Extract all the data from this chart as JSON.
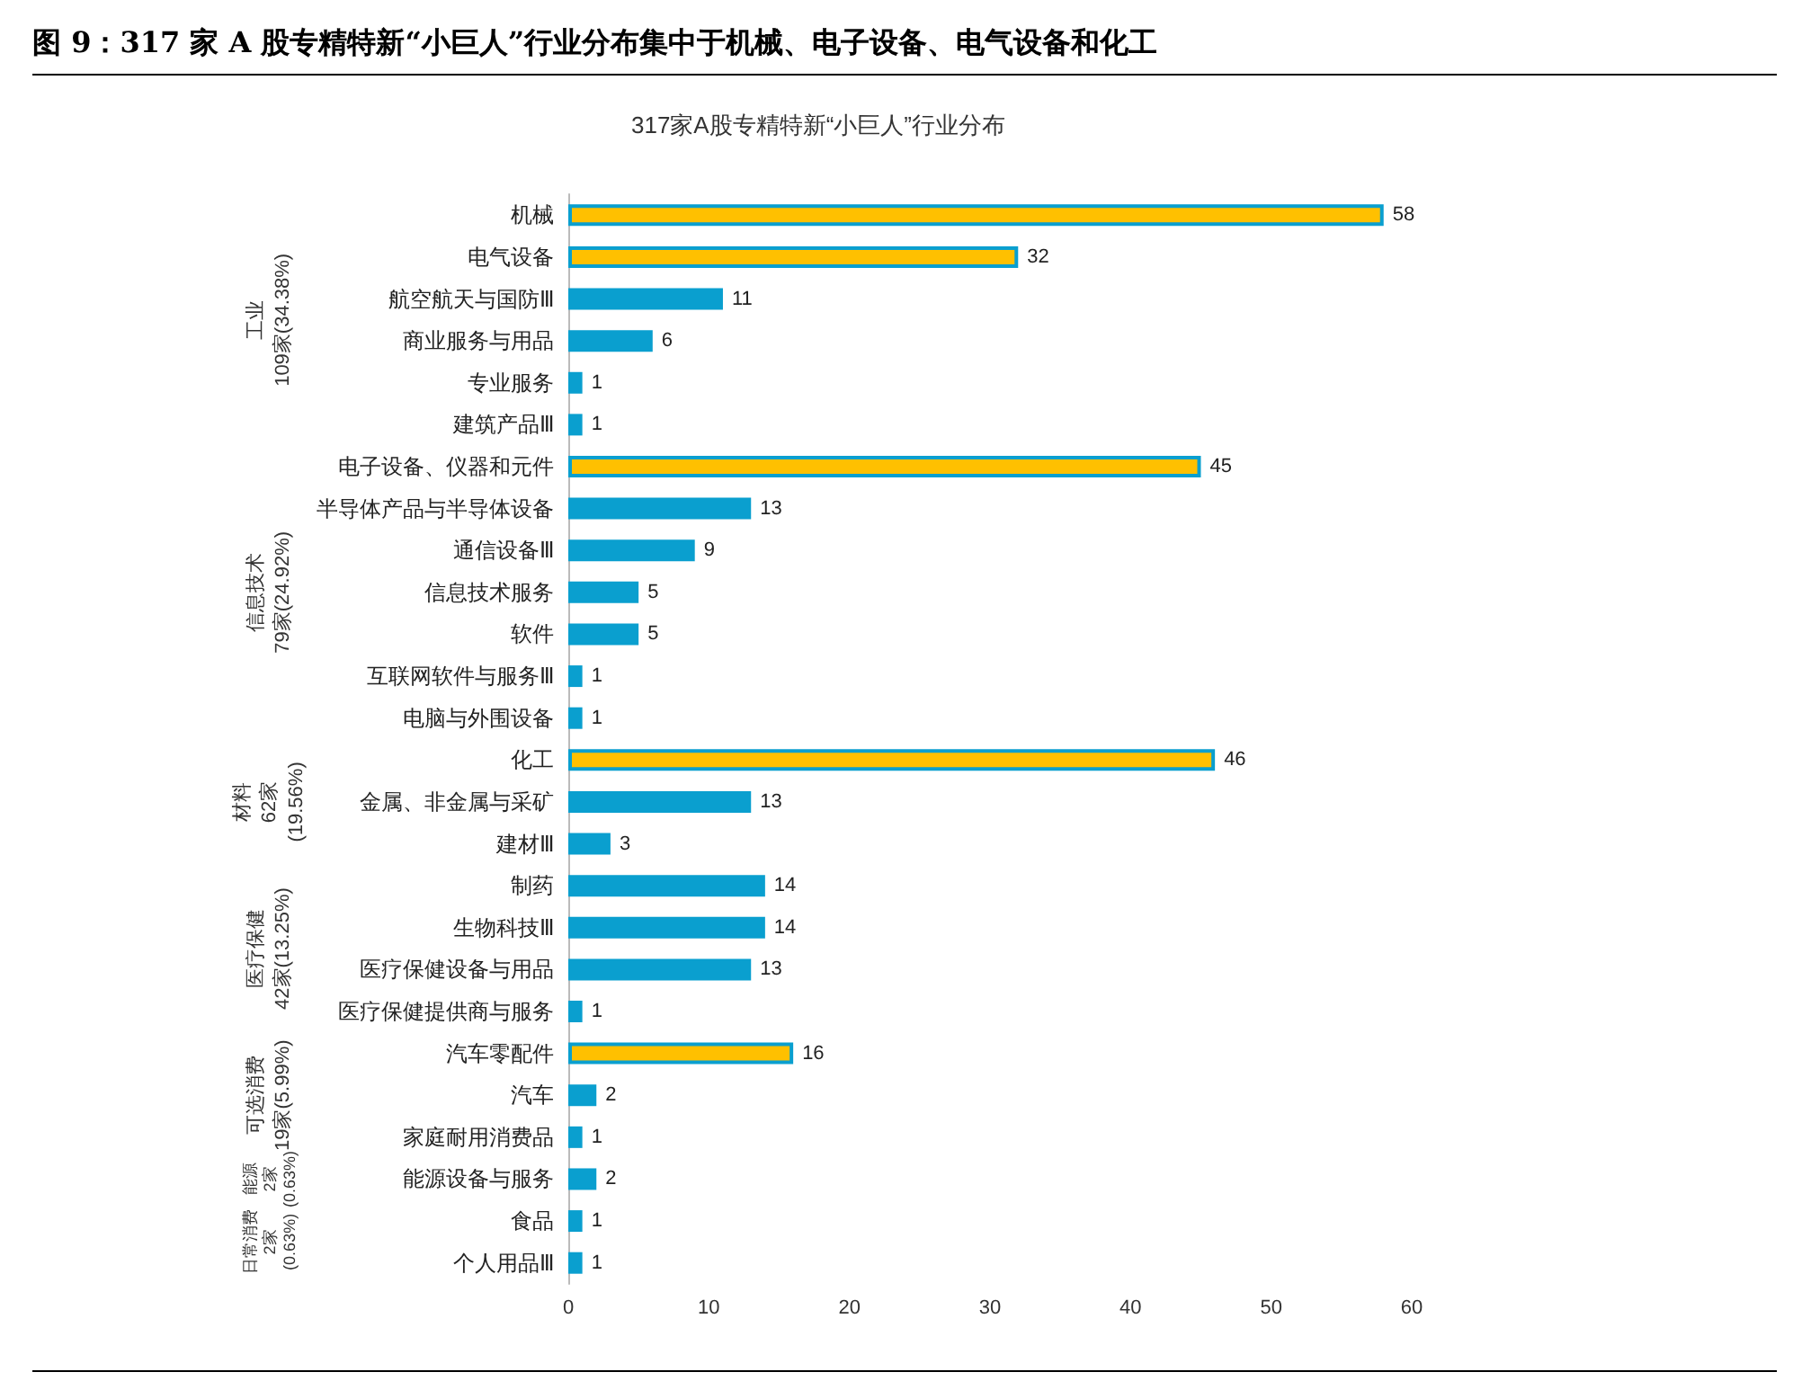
{
  "chart_data": {
    "type": "bar",
    "orientation": "horizontal",
    "title": "图 9：317 家 A 股专精特新“小巨人”行业分布集中于机械、电子设备、电气设备和化工",
    "subtitle": "317家A股专精特新“小巨人”行业分布",
    "categories": [
      "机械",
      "电气设备",
      "航空航天与国防Ⅲ",
      "商业服务与用品",
      "专业服务",
      "建筑产品Ⅲ",
      "电子设备、仪器和元件",
      "半导体产品与半导体设备",
      "通信设备Ⅲ",
      "信息技术服务",
      "软件",
      "互联网软件与服务Ⅲ",
      "电脑与外围设备",
      "化工",
      "金属、非金属与采矿",
      "建材Ⅲ",
      "制药",
      "生物科技Ⅲ",
      "医疗保健设备与用品",
      "医疗保健提供商与服务",
      "汽车零配件",
      "汽车",
      "家庭耐用消费品",
      "能源设备与服务",
      "食品",
      "个人用品Ⅲ"
    ],
    "values": [
      58,
      32,
      11,
      6,
      1,
      1,
      45,
      13,
      9,
      5,
      5,
      1,
      1,
      46,
      13,
      3,
      14,
      14,
      13,
      1,
      16,
      2,
      1,
      2,
      1,
      1
    ],
    "color": "#0a9fcf",
    "colors": [
      "#ffc000",
      "#ffc000",
      "#0a9fcf",
      "#0a9fcf",
      "#0a9fcf",
      "#0a9fcf",
      "#ffc000",
      "#0a9fcf",
      "#0a9fcf",
      "#0a9fcf",
      "#0a9fcf",
      "#0a9fcf",
      "#0a9fcf",
      "#ffc000",
      "#0a9fcf",
      "#0a9fcf",
      "#0a9fcf",
      "#0a9fcf",
      "#0a9fcf",
      "#0a9fcf",
      "#ffc000",
      "#0a9fcf",
      "#0a9fcf",
      "#0a9fcf",
      "#0a9fcf",
      "#0a9fcf"
    ],
    "data_labels": true,
    "xlim": [
      0,
      60
    ],
    "xticks": [
      0,
      10,
      20,
      30,
      40,
      50,
      60
    ],
    "grid": false,
    "annotations": [
      "工业\n109家(34.38%)",
      "信息技术\n79家(24.92%)",
      "材料\n62家\n(19.56%)",
      "医疗保健\n42家(13.25%)",
      "可选消费\n19家(5.99%)",
      "能源\n2家\n(0.63%)",
      "日常消费\n2家\n(0.63%)"
    ]
  }
}
